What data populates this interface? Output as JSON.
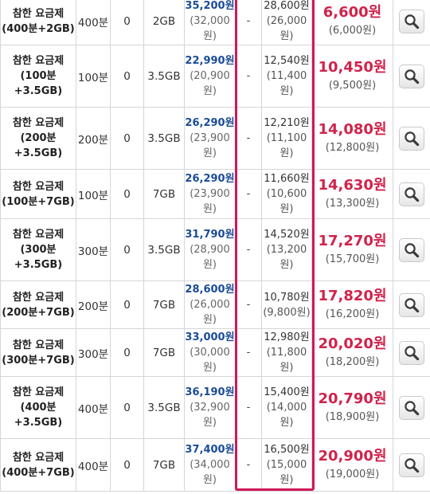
{
  "colors": {
    "original_price": "#1a4c97",
    "total_price": "#d0234b",
    "highlight_border": "#d0185a"
  },
  "icons": {
    "view_button": "magnifier-icon"
  },
  "rows": [
    {
      "name": [
        "참한 요금제",
        "(400분+2GB)"
      ],
      "voice": "400분",
      "sms": "0",
      "data": "2GB",
      "original_price": "35,200원",
      "original_sub": [
        "(32,000",
        "원)"
      ],
      "discount": "-",
      "payment": "28,600원",
      "payment_sub": [
        "(26,000",
        "원)"
      ],
      "total": "6,600원",
      "total_sub": "(6,000원)"
    },
    {
      "name": [
        "참한 요금제",
        "(100분",
        "+3.5GB)"
      ],
      "voice": "100분",
      "sms": "0",
      "data": "3.5GB",
      "original_price": "22,990원",
      "original_sub": [
        "(20,900",
        "원)"
      ],
      "discount": "-",
      "payment": "12,540원",
      "payment_sub": [
        "(11,400",
        "원)"
      ],
      "total": "10,450원",
      "total_sub": "(9,500원)"
    },
    {
      "name": [
        "참한 요금제",
        "(200분",
        "+3.5GB)"
      ],
      "voice": "200분",
      "sms": "0",
      "data": "3.5GB",
      "original_price": "26,290원",
      "original_sub": [
        "(23,900",
        "원)"
      ],
      "discount": "-",
      "payment": "12,210원",
      "payment_sub": [
        "(11,100",
        "원)"
      ],
      "total": "14,080원",
      "total_sub": "(12,800원)"
    },
    {
      "name": [
        "참한 요금제",
        "(100분+7GB)"
      ],
      "voice": "100분",
      "sms": "0",
      "data": "7GB",
      "original_price": "26,290원",
      "original_sub": [
        "(23,900",
        "원)"
      ],
      "discount": "-",
      "payment": "11,660원",
      "payment_sub": [
        "(10,600",
        "원)"
      ],
      "total": "14,630원",
      "total_sub": "(13,300원)"
    },
    {
      "name": [
        "참한 요금제",
        "(300분",
        "+3.5GB)"
      ],
      "voice": "300분",
      "sms": "0",
      "data": "3.5GB",
      "original_price": "31,790원",
      "original_sub": [
        "(28,900",
        "원)"
      ],
      "discount": "-",
      "payment": "14,520원",
      "payment_sub": [
        "(13,200",
        "원)"
      ],
      "total": "17,270원",
      "total_sub": "(15,700원)"
    },
    {
      "name": [
        "참한 요금제",
        "(200분+7GB)"
      ],
      "voice": "200분",
      "sms": "0",
      "data": "7GB",
      "original_price": "28,600원",
      "original_sub": [
        "(26,000",
        "원)"
      ],
      "discount": "-",
      "payment": "10,780원",
      "payment_sub": [
        "(9,800원)"
      ],
      "total": "17,820원",
      "total_sub": "(16,200원)"
    },
    {
      "name": [
        "참한 요금제",
        "(300분+7GB)"
      ],
      "voice": "300분",
      "sms": "0",
      "data": "7GB",
      "original_price": "33,000원",
      "original_sub": [
        "(30,000",
        "원)"
      ],
      "discount": "-",
      "payment": "12,980원",
      "payment_sub": [
        "(11,800",
        "원)"
      ],
      "total": "20,020원",
      "total_sub": "(18,200원)"
    },
    {
      "name": [
        "참한 요금제",
        "(400분",
        "+3.5GB)"
      ],
      "voice": "400분",
      "sms": "0",
      "data": "3.5GB",
      "original_price": "36,190원",
      "original_sub": [
        "(32,900",
        "원)"
      ],
      "discount": "-",
      "payment": "15,400원",
      "payment_sub": [
        "(14,000",
        "원)"
      ],
      "total": "20,790원",
      "total_sub": "(18,900원)"
    },
    {
      "name": [
        "참한 요금제",
        "(400분+7GB)"
      ],
      "voice": "400분",
      "sms": "0",
      "data": "7GB",
      "original_price": "37,400원",
      "original_sub": [
        "(34,000",
        "원)"
      ],
      "discount": "-",
      "payment": "16,500원",
      "payment_sub": [
        "(15,000",
        "원)"
      ],
      "total": "20,900원",
      "total_sub": "(19,000원)"
    }
  ]
}
